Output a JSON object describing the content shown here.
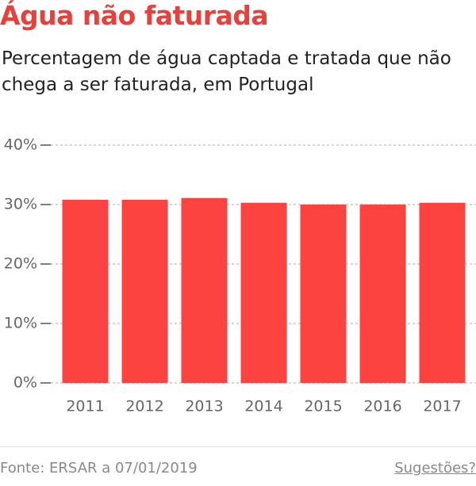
{
  "chart_data": {
    "type": "bar",
    "title": "Água não faturada",
    "subtitle": "Percentagem de água captada e tratada que não chega a ser faturada, em Portugal",
    "categories": [
      "2011",
      "2012",
      "2013",
      "2014",
      "2015",
      "2016",
      "2017"
    ],
    "values": [
      30.8,
      30.8,
      31.1,
      30.3,
      30.0,
      30.0,
      30.3
    ],
    "color": "#fc4340",
    "ylim": [
      0,
      40
    ],
    "yticks": [
      {
        "value": 0,
        "label": "0%"
      },
      {
        "value": 10,
        "label": "10%"
      },
      {
        "value": 20,
        "label": "20%"
      },
      {
        "value": 30,
        "label": "30%"
      },
      {
        "value": 40,
        "label": "40%"
      }
    ],
    "grid": true,
    "source": "Fonte: ERSAR a 07/01/2019",
    "link": "Sugestões?"
  }
}
